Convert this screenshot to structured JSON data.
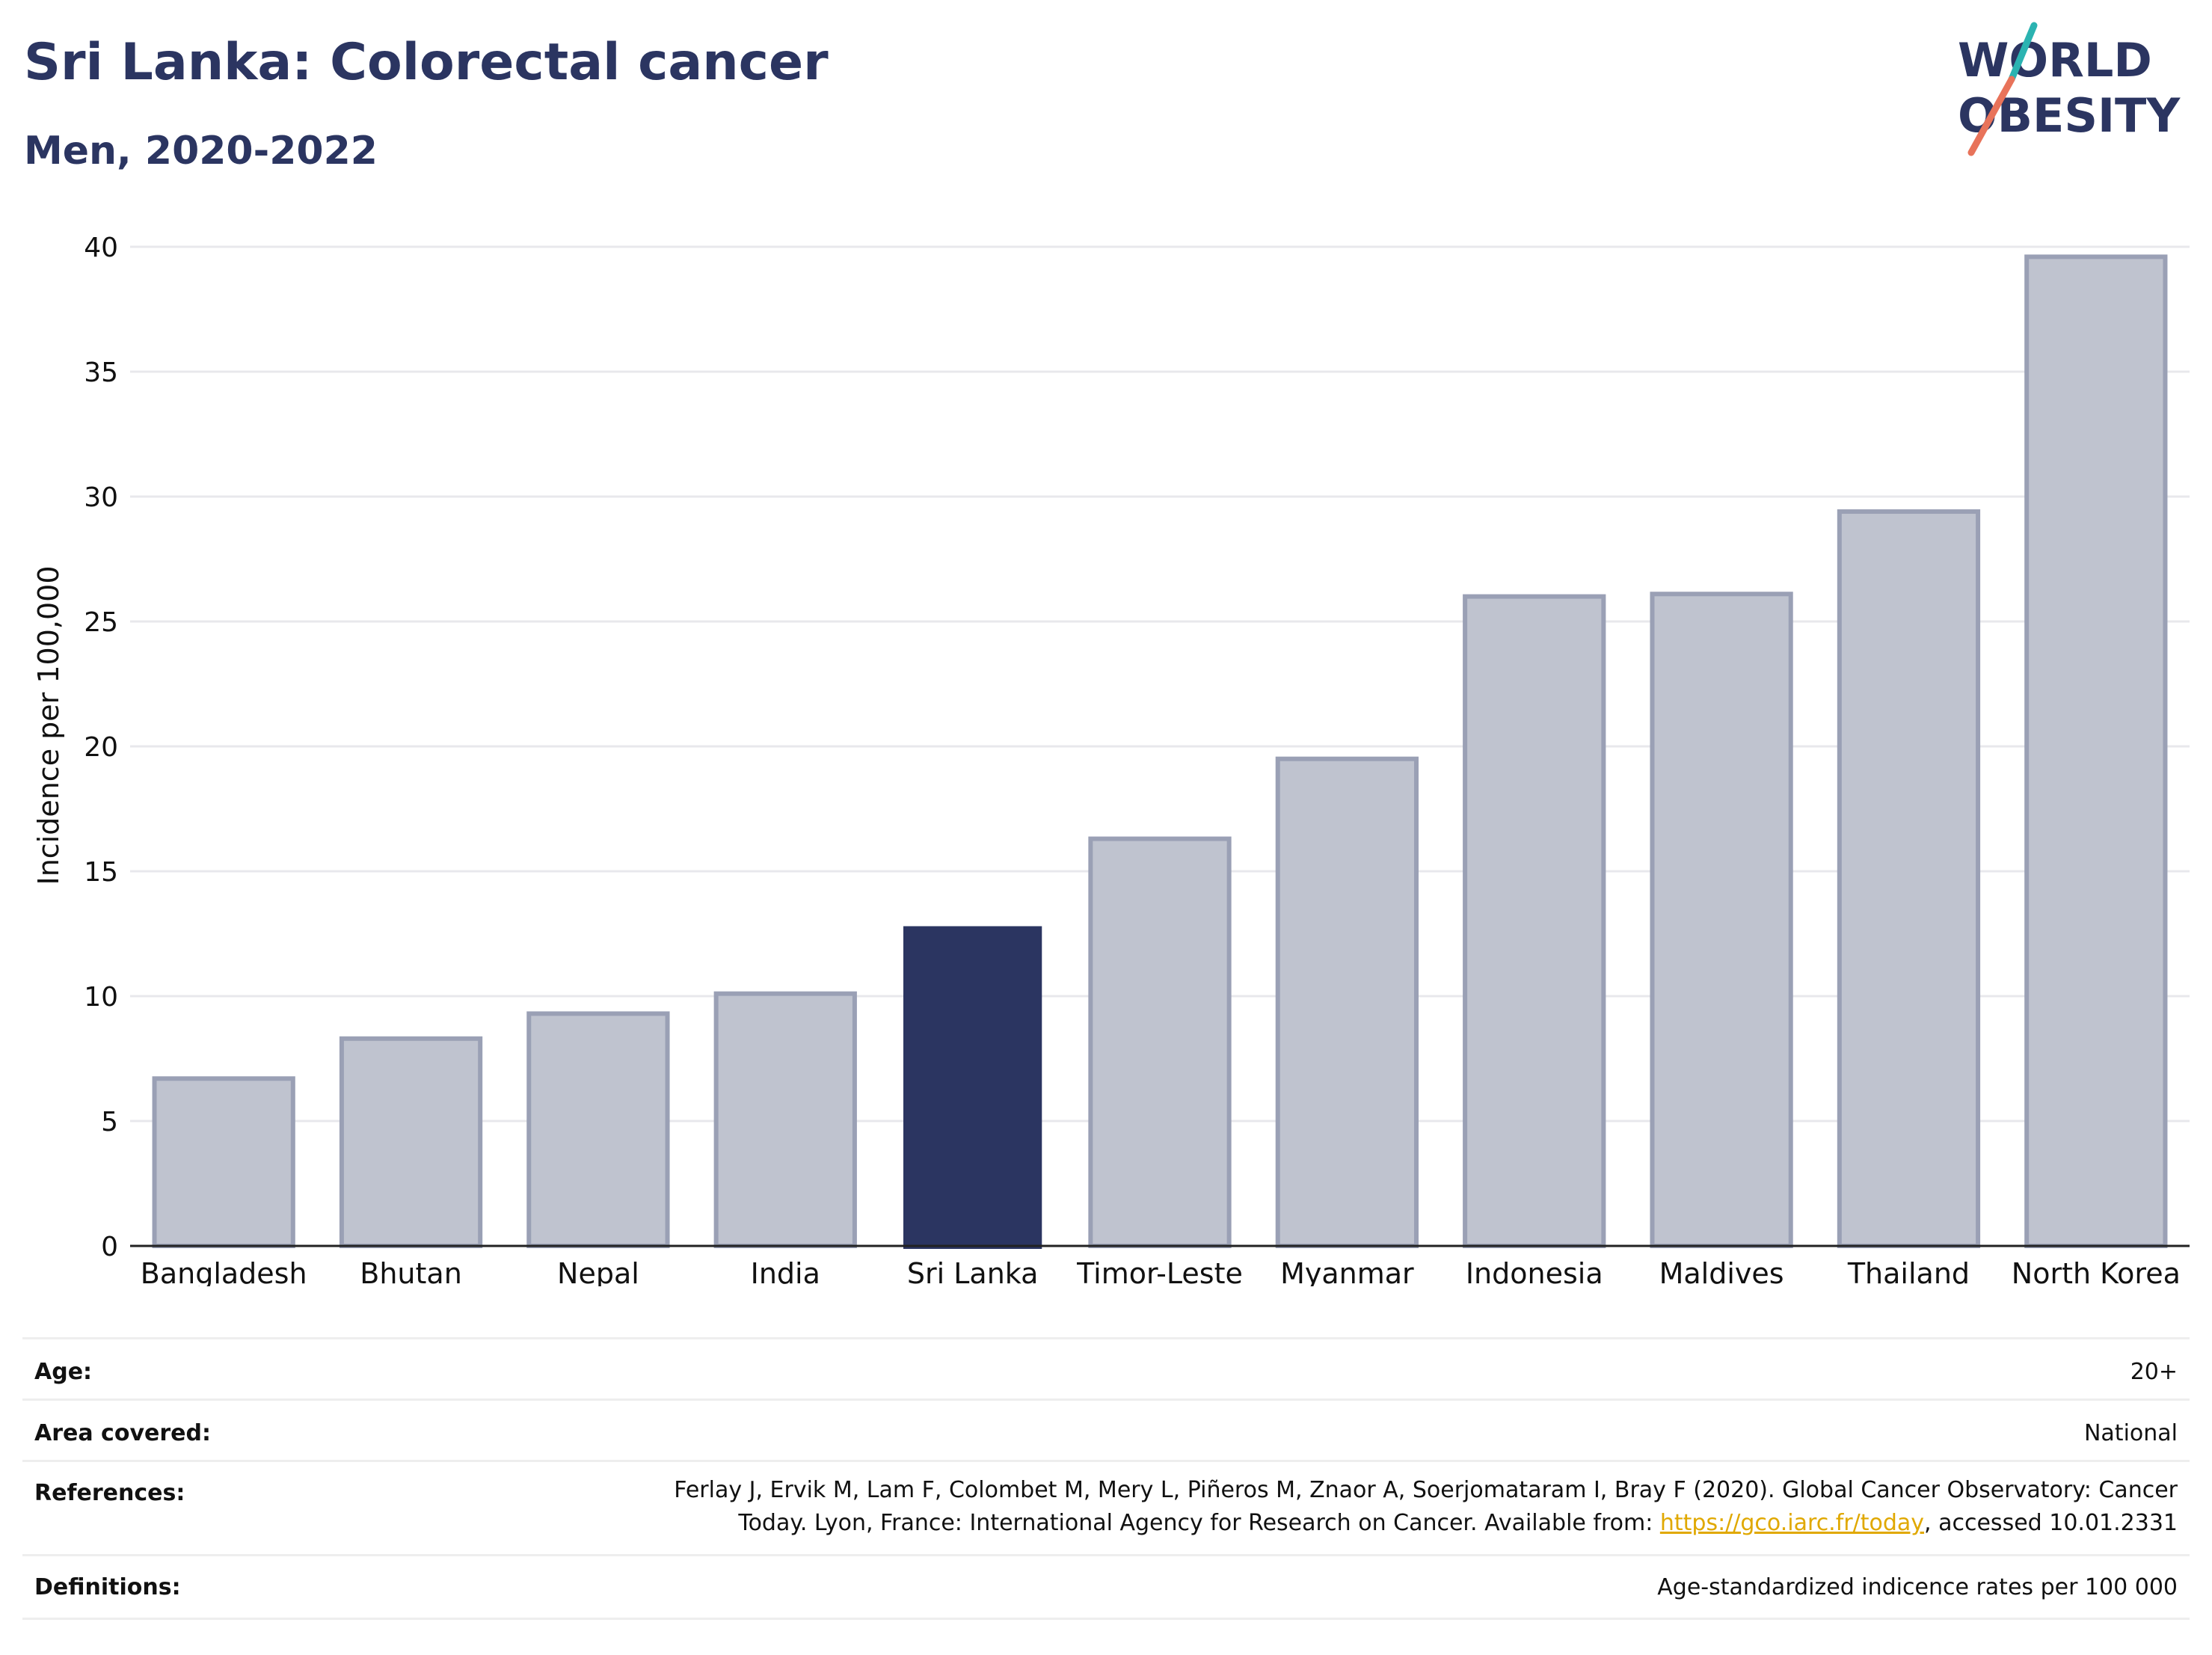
{
  "header": {
    "title": "Sri Lanka: Colorectal cancer",
    "subtitle": "Men, 2020-2022"
  },
  "logo": {
    "line1": "WORLD",
    "line2": "OBESITY",
    "colors": {
      "text": "#2b3561",
      "teal": "#2bb3b1",
      "coral": "#e8735a"
    }
  },
  "chart_data": {
    "type": "bar",
    "categories": [
      "Bangladesh",
      "Bhutan",
      "Nepal",
      "India",
      "Sri Lanka",
      "Timor-Leste",
      "Myanmar",
      "Indonesia",
      "Maldives",
      "Thailand",
      "North Korea"
    ],
    "values": [
      6.7,
      8.3,
      9.3,
      10.1,
      12.8,
      16.3,
      19.5,
      26.0,
      26.1,
      29.4,
      39.6
    ],
    "highlight": "Sri Lanka",
    "ylabel": "Incidence per 100,000",
    "xlabel": "",
    "ylim": [
      0,
      40
    ],
    "yticks": [
      0,
      5,
      10,
      15,
      20,
      25,
      30,
      35,
      40
    ],
    "grid": true,
    "colors": {
      "bar": "#bfc3cf",
      "bar_edge": "#9aa0b5",
      "highlight": "#2b3561",
      "grid": "#e8e8ec",
      "axis": "#222222"
    }
  },
  "meta": {
    "age_label": "Age:",
    "age_value": "20+",
    "area_label": "Area covered:",
    "area_value": "National",
    "references_label": "References:",
    "references_line1": "Ferlay J, Ervik M, Lam F, Colombet M, Mery L, Piñeros M, Znaor A, Soerjomataram I, Bray F (2020). Global Cancer Observatory: Cancer",
    "references_line2_pre": "Today. Lyon, France: International Agency for Research on Cancer. Available from: ",
    "references_link": "https://gco.iarc.fr/today",
    "references_line2_post": ", accessed 10.01.2331",
    "definitions_label": "Definitions:",
    "definitions_value": "Age-standardized indicence rates per 100 000"
  }
}
